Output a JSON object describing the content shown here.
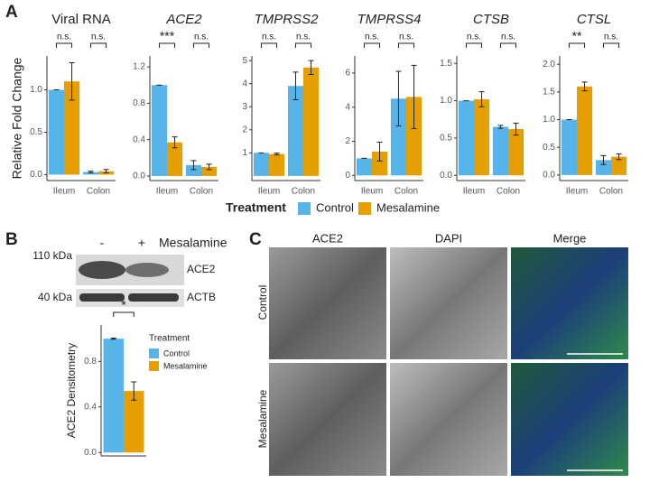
{
  "panels": [
    "A",
    "B",
    "C"
  ],
  "blot": {
    "markers": [
      "110 kDa",
      "40 kDa"
    ],
    "bands": [
      "ACE2",
      "ACTB"
    ],
    "lanes": [
      "-",
      "+"
    ],
    "treatment": "Mesalamine"
  },
  "micrographs": {
    "columns": [
      "ACE2",
      "DAPI",
      "Merge"
    ],
    "rows": [
      "Control",
      "Mesalamine"
    ]
  },
  "chart_data": [
    {
      "type": "bar",
      "title": "Viral RNA",
      "title_style": "normal",
      "ylabel": "Relative Fold Change",
      "legend_title": "Treatment",
      "categories": [
        "Ileum",
        "Colon"
      ],
      "series": [
        {
          "name": "Control",
          "color": "#56B4E9",
          "values": [
            1.0,
            0.03
          ],
          "errors": [
            0,
            0.01
          ]
        },
        {
          "name": "Mesalamine",
          "color": "#E69F00",
          "values": [
            1.1,
            0.04
          ],
          "errors": [
            0.22,
            0.02
          ]
        }
      ],
      "ylim": [
        -0.07,
        1.4
      ],
      "yticks": [
        {
          "value": 0,
          "label": "0.0"
        },
        {
          "value": 0.5,
          "label": "0.5"
        },
        {
          "value": 1,
          "label": "1.0"
        }
      ],
      "significance": [
        "n.s.",
        "n.s."
      ]
    },
    {
      "type": "bar",
      "title": "ACE2",
      "title_style": "italic",
      "categories": [
        "Ileum",
        "Colon"
      ],
      "series": [
        {
          "name": "Control",
          "color": "#56B4E9",
          "values": [
            1.0,
            0.12
          ],
          "errors": [
            0,
            0.05
          ]
        },
        {
          "name": "Mesalamine",
          "color": "#E69F00",
          "values": [
            0.37,
            0.1
          ],
          "errors": [
            0.06,
            0.03
          ]
        }
      ],
      "ylim": [
        -0.05,
        1.32
      ],
      "yticks": [
        {
          "value": 0,
          "label": "0.0"
        },
        0.4,
        0.8,
        1.2
      ],
      "significance": [
        "***",
        "n.s."
      ]
    },
    {
      "type": "bar",
      "title": "TMPRSS2",
      "title_style": "italic",
      "categories": [
        "Ileum",
        "Colon"
      ],
      "series": [
        {
          "name": "Control",
          "color": "#56B4E9",
          "values": [
            1.0,
            3.9
          ],
          "errors": [
            0,
            0.6
          ]
        },
        {
          "name": "Mesalamine",
          "color": "#E69F00",
          "values": [
            0.95,
            4.7
          ],
          "errors": [
            0.04,
            0.3
          ]
        }
      ],
      "ylim": [
        -0.2,
        5.2
      ],
      "yticks": [
        1,
        2,
        3,
        4,
        5
      ],
      "significance": [
        "n.s.",
        "n.s."
      ]
    },
    {
      "type": "bar",
      "title": "TMPRSS4",
      "title_style": "italic",
      "categories": [
        "Ileum",
        "Colon"
      ],
      "series": [
        {
          "name": "Control",
          "color": "#56B4E9",
          "values": [
            1.0,
            4.5
          ],
          "errors": [
            0,
            1.6
          ]
        },
        {
          "name": "Mesalamine",
          "color": "#E69F00",
          "values": [
            1.4,
            4.6
          ],
          "errors": [
            0.55,
            1.85
          ]
        }
      ],
      "ylim": [
        -0.3,
        7
      ],
      "yticks": [
        0,
        2,
        4,
        6
      ],
      "significance": [
        "n.s.",
        "n.s."
      ]
    },
    {
      "type": "bar",
      "title": "CTSB",
      "title_style": "italic",
      "categories": [
        "Ileum",
        "Colon"
      ],
      "series": [
        {
          "name": "Control",
          "color": "#56B4E9",
          "values": [
            1.0,
            0.65
          ],
          "errors": [
            0,
            0.02
          ]
        },
        {
          "name": "Mesalamine",
          "color": "#E69F00",
          "values": [
            1.02,
            0.62
          ],
          "errors": [
            0.1,
            0.08
          ]
        }
      ],
      "ylim": [
        -0.07,
        1.6
      ],
      "yticks": [
        {
          "value": 0,
          "label": "0.0"
        },
        0.5,
        {
          "value": 1,
          "label": "1.0"
        },
        1.5
      ],
      "significance": [
        "n.s.",
        "n.s."
      ]
    },
    {
      "type": "bar",
      "title": "CTSL",
      "title_style": "italic",
      "categories": [
        "Ileum",
        "Colon"
      ],
      "series": [
        {
          "name": "Control",
          "color": "#56B4E9",
          "values": [
            1.0,
            0.27
          ],
          "errors": [
            0,
            0.08
          ]
        },
        {
          "name": "Mesalamine",
          "color": "#E69F00",
          "values": [
            1.6,
            0.33
          ],
          "errors": [
            0.08,
            0.05
          ]
        }
      ],
      "ylim": [
        -0.1,
        2.15
      ],
      "yticks": [
        {
          "value": 0,
          "label": "0.0"
        },
        0.5,
        {
          "value": 1,
          "label": "1.0"
        },
        1.5,
        {
          "value": 2,
          "label": "2.0"
        }
      ],
      "significance": [
        "**",
        "n.s."
      ]
    },
    {
      "type": "bar",
      "ylabel": "ACE2 Densitometry",
      "legend_title": "Treatment",
      "categories": [
        null
      ],
      "series": [
        {
          "name": "Control",
          "color": "#56B4E9",
          "values": [
            1.0
          ],
          "errors": [
            0.005
          ]
        },
        {
          "name": "Mesalamine",
          "color": "#E69F00",
          "values": [
            0.54
          ],
          "errors": [
            0.08
          ]
        }
      ],
      "ylim": [
        -0.03,
        1.12
      ],
      "yticks": [
        {
          "value": 0,
          "label": "0.0"
        },
        0.4,
        0.8
      ],
      "significance": [
        "*"
      ]
    }
  ]
}
